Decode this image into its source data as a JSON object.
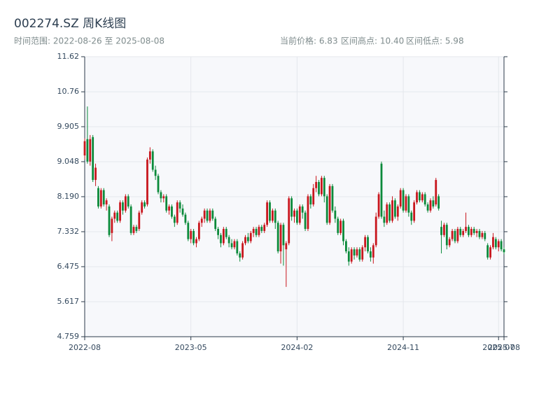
{
  "chart_data": {
    "type": "candlestick",
    "title": "002274.SZ 周K线图",
    "subtitle": "时间范围: 2022-08-26 至 2025-08-08",
    "stats": [
      "当前价格: 6.83",
      "区间高点: 10.40",
      "区间低点: 5.98"
    ],
    "up_color": "#c8161d",
    "down_color": "#0b8a3a",
    "grid": true,
    "ylim": [
      4.759,
      11.62
    ],
    "yticks": [
      4.759,
      5.617,
      6.475,
      7.332,
      {
        "value": 8.19,
        "label": "8.190"
      },
      9.048,
      9.905,
      10.76,
      11.62
    ],
    "categories": [
      "2022-08",
      null,
      null,
      null,
      null,
      null,
      null,
      null,
      null,
      null,
      null,
      null,
      null,
      null,
      null,
      null,
      null,
      null,
      null,
      null,
      null,
      null,
      null,
      null,
      null,
      null,
      null,
      null,
      null,
      null,
      null,
      null,
      null,
      null,
      null,
      null,
      null,
      null,
      null,
      "2023-05",
      null,
      null,
      null,
      null,
      null,
      null,
      null,
      null,
      null,
      null,
      null,
      null,
      null,
      null,
      null,
      null,
      null,
      null,
      null,
      null,
      null,
      null,
      null,
      null,
      null,
      null,
      null,
      null,
      null,
      null,
      null,
      null,
      null,
      null,
      null,
      null,
      null,
      null,
      "2024-02",
      null,
      null,
      null,
      null,
      null,
      null,
      null,
      null,
      null,
      null,
      null,
      null,
      null,
      null,
      null,
      null,
      null,
      null,
      null,
      null,
      null,
      null,
      null,
      null,
      null,
      null,
      null,
      null,
      null,
      null,
      null,
      null,
      null,
      null,
      null,
      null,
      null,
      null,
      "2024-11",
      null,
      null,
      null,
      null,
      null,
      null,
      null,
      null,
      null,
      null,
      null,
      null,
      null,
      null,
      null,
      null,
      null,
      null,
      null,
      null,
      null,
      null,
      null,
      null,
      null,
      null,
      null,
      null,
      null,
      null,
      null,
      null,
      null,
      null,
      "2025-07",
      null,
      "2025-08"
    ],
    "open": [
      9.2,
      9.6,
      9.05,
      9.65,
      8.6,
      8.4,
      7.95,
      8.35,
      8.0,
      7.95,
      7.3,
      7.65,
      7.8,
      7.6,
      8.05,
      7.85,
      8.2,
      7.95,
      7.3,
      7.45,
      7.4,
      7.8,
      8.05,
      8.0,
      9.1,
      9.3,
      8.85,
      8.7,
      8.3,
      8.15,
      8.2,
      7.85,
      7.95,
      7.7,
      7.55,
      8.05,
      7.9,
      7.75,
      7.55,
      7.15,
      7.35,
      7.05,
      7.15,
      7.55,
      7.65,
      7.85,
      7.6,
      7.85,
      7.65,
      7.4,
      7.25,
      7.05,
      7.4,
      7.2,
      7.05,
      6.95,
      7.1,
      6.8,
      6.7,
      7.05,
      7.2,
      7.1,
      7.3,
      7.4,
      7.25,
      7.45,
      7.35,
      7.5,
      8.05,
      7.6,
      7.85,
      7.55,
      6.85,
      7.5,
      6.9,
      7.05,
      8.15,
      7.7,
      7.85,
      7.55,
      7.95,
      7.8,
      7.4,
      8.2,
      8.0,
      8.4,
      8.55,
      8.25,
      8.65,
      8.2,
      7.55,
      8.45,
      7.85,
      7.65,
      7.3,
      7.6,
      7.1,
      6.85,
      6.6,
      6.9,
      6.75,
      6.9,
      6.65,
      6.95,
      7.2,
      6.85,
      6.7,
      7.0,
      7.7,
      9.0,
      7.7,
      7.55,
      8.0,
      7.6,
      8.1,
      7.7,
      7.95,
      8.35,
      7.85,
      8.2,
      7.8,
      7.6,
      8.05,
      8.3,
      8.1,
      8.25,
      8.0,
      7.85,
      8.1,
      8.0,
      8.2,
      7.45,
      7.25,
      7.5,
      7.0,
      7.15,
      7.35,
      7.1,
      7.4,
      7.25,
      7.35,
      7.45,
      7.25,
      7.4,
      7.3,
      7.35,
      7.2,
      7.3,
      7.0,
      6.7,
      6.95,
      7.15,
      6.95,
      7.1,
      6.9
    ],
    "high": [
      9.62,
      10.4,
      9.7,
      9.7,
      9.0,
      8.45,
      8.4,
      8.4,
      8.15,
      8.0,
      7.7,
      7.85,
      7.85,
      8.1,
      8.1,
      8.25,
      8.25,
      8.0,
      7.5,
      7.5,
      7.85,
      8.1,
      8.1,
      9.15,
      9.4,
      9.35,
      8.95,
      8.75,
      8.35,
      8.25,
      8.25,
      8.0,
      8.0,
      7.75,
      8.1,
      8.1,
      8.0,
      7.8,
      7.6,
      7.4,
      7.4,
      7.2,
      7.6,
      7.7,
      7.9,
      7.9,
      7.9,
      7.9,
      7.7,
      7.45,
      7.3,
      7.45,
      7.45,
      7.25,
      7.15,
      7.15,
      7.15,
      6.85,
      7.1,
      7.25,
      7.3,
      7.35,
      7.45,
      7.45,
      7.5,
      7.5,
      7.55,
      8.1,
      8.1,
      7.9,
      7.9,
      7.6,
      7.55,
      7.55,
      7.1,
      8.2,
      8.2,
      7.9,
      7.9,
      8.0,
      8.0,
      7.85,
      8.25,
      8.25,
      8.5,
      8.7,
      8.6,
      8.7,
      8.7,
      8.25,
      8.5,
      8.5,
      7.95,
      7.7,
      7.65,
      7.65,
      7.15,
      6.95,
      6.95,
      6.95,
      6.95,
      6.95,
      7.0,
      7.25,
      7.25,
      6.95,
      7.05,
      7.8,
      8.3,
      9.05,
      7.85,
      8.05,
      8.05,
      8.2,
      8.15,
      8.0,
      8.4,
      8.4,
      8.25,
      8.25,
      7.85,
      8.1,
      8.35,
      8.35,
      8.3,
      8.3,
      8.05,
      8.15,
      8.2,
      8.65,
      8.25,
      7.6,
      7.55,
      7.55,
      7.2,
      7.4,
      7.4,
      7.45,
      7.45,
      7.4,
      7.8,
      7.5,
      7.45,
      7.45,
      7.4,
      7.4,
      7.35,
      7.35,
      7.05,
      7.0,
      7.3,
      7.2,
      7.15,
      7.15,
      6.95
    ],
    "low": [
      9.1,
      9.0,
      8.95,
      8.55,
      8.45,
      7.9,
      7.9,
      7.95,
      7.85,
      7.2,
      7.1,
      7.55,
      7.55,
      7.55,
      7.75,
      7.8,
      7.9,
      7.25,
      7.25,
      7.3,
      7.35,
      7.75,
      7.9,
      7.95,
      9.0,
      8.8,
      8.6,
      8.25,
      8.05,
      8.05,
      7.8,
      7.75,
      7.65,
      7.45,
      7.5,
      7.8,
      7.7,
      7.5,
      7.1,
      7.05,
      7.0,
      6.95,
      7.1,
      7.45,
      7.55,
      7.55,
      7.55,
      7.6,
      7.35,
      7.15,
      6.95,
      7.0,
      7.15,
      6.95,
      6.9,
      6.9,
      6.75,
      6.6,
      6.65,
      7.0,
      7.05,
      7.05,
      7.2,
      7.2,
      7.2,
      7.3,
      7.3,
      7.45,
      7.55,
      7.55,
      7.4,
      6.8,
      6.55,
      6.5,
      5.98,
      7.0,
      7.6,
      7.55,
      7.5,
      7.5,
      7.65,
      7.35,
      7.35,
      7.9,
      7.95,
      8.3,
      8.2,
      8.2,
      8.05,
      7.5,
      7.5,
      7.8,
      7.55,
      7.25,
      7.25,
      7.0,
      6.8,
      6.5,
      6.55,
      6.65,
      6.7,
      6.6,
      6.6,
      6.85,
      6.8,
      6.6,
      6.55,
      6.95,
      7.65,
      7.65,
      7.45,
      7.5,
      7.55,
      7.55,
      7.65,
      7.6,
      7.9,
      7.8,
      7.8,
      7.7,
      7.5,
      7.55,
      8.0,
      8.05,
      8.05,
      7.95,
      7.8,
      7.8,
      7.9,
      7.95,
      7.85,
      6.8,
      7.2,
      6.9,
      6.95,
      7.1,
      7.05,
      7.05,
      7.2,
      7.2,
      7.3,
      7.2,
      7.2,
      7.25,
      7.2,
      7.15,
      7.15,
      7.1,
      6.65,
      6.65,
      6.9,
      6.9,
      6.85,
      6.85,
      6.78
    ],
    "close": [
      9.55,
      9.05,
      9.6,
      8.6,
      8.9,
      7.95,
      8.35,
      8.0,
      8.1,
      7.25,
      7.65,
      7.8,
      7.6,
      8.05,
      7.85,
      8.2,
      7.95,
      7.3,
      7.45,
      7.35,
      7.8,
      8.05,
      7.95,
      9.1,
      9.3,
      8.85,
      8.7,
      8.3,
      8.15,
      8.2,
      7.85,
      7.95,
      7.7,
      7.55,
      8.05,
      7.9,
      7.75,
      7.55,
      7.15,
      7.35,
      7.05,
      7.15,
      7.55,
      7.65,
      7.85,
      7.6,
      7.85,
      7.65,
      7.4,
      7.25,
      7.05,
      7.4,
      7.2,
      7.05,
      6.95,
      7.1,
      6.8,
      6.7,
      7.05,
      7.2,
      7.1,
      7.3,
      7.4,
      7.25,
      7.45,
      7.35,
      7.5,
      8.05,
      7.6,
      7.85,
      7.55,
      6.85,
      7.5,
      7.0,
      7.05,
      8.15,
      7.7,
      7.85,
      7.55,
      7.95,
      7.8,
      7.4,
      8.2,
      8.0,
      8.4,
      8.55,
      8.25,
      8.65,
      8.2,
      7.55,
      8.45,
      7.85,
      7.65,
      7.3,
      7.6,
      7.1,
      6.85,
      6.6,
      6.9,
      6.75,
      6.9,
      6.65,
      6.95,
      7.2,
      6.85,
      6.7,
      7.0,
      7.7,
      8.25,
      7.7,
      7.55,
      8.0,
      7.6,
      8.1,
      7.7,
      7.95,
      8.35,
      7.85,
      8.2,
      7.8,
      7.6,
      8.05,
      8.3,
      8.1,
      8.25,
      8.0,
      7.85,
      8.1,
      7.95,
      8.6,
      7.9,
      7.25,
      7.5,
      7.0,
      7.15,
      7.35,
      7.1,
      7.4,
      7.25,
      7.35,
      7.45,
      7.25,
      7.4,
      7.3,
      7.35,
      7.2,
      7.3,
      7.15,
      6.7,
      6.95,
      7.2,
      6.95,
      7.1,
      6.9,
      6.83
    ]
  }
}
